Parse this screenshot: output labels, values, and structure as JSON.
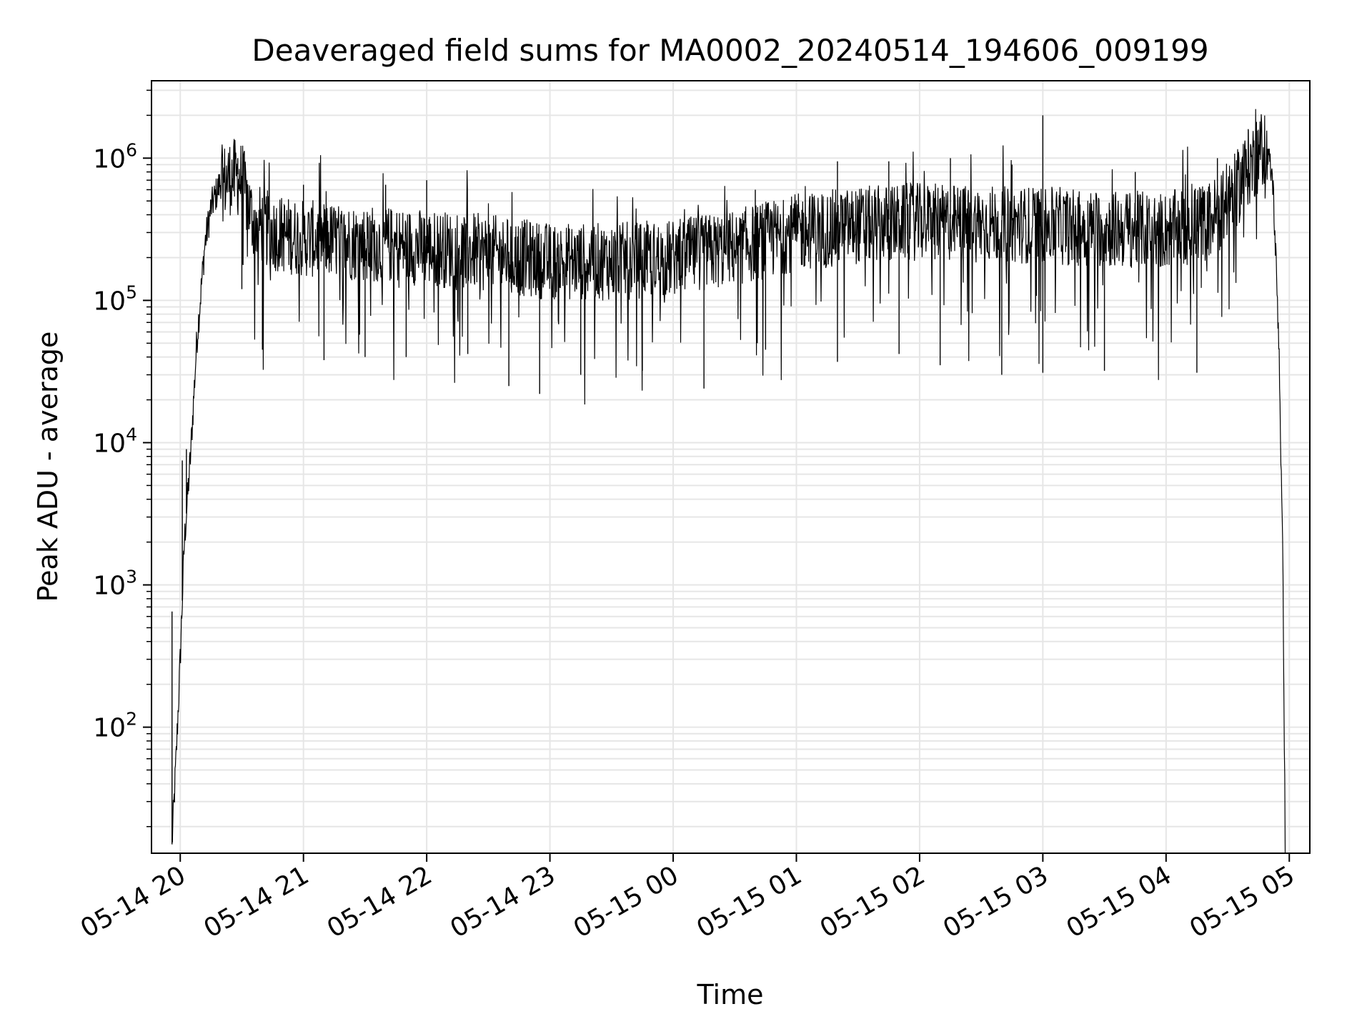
{
  "chart_data": {
    "type": "line",
    "title": "Deaveraged field sums for MA0002_20240514_194606_009199",
    "xlabel": "Time",
    "ylabel": "Peak ADU - average",
    "yscale": "log",
    "grid": true,
    "grid_minor": true,
    "legend": "none",
    "line_color": "#000000",
    "grid_color": "#e6e6e6",
    "xlim": [
      "2024-05-14 19:46",
      "2024-05-15 05:10"
    ],
    "ylim": [
      13,
      3500000
    ],
    "x_ticks": [
      {
        "value": "2024-05-14 20:00",
        "label": "05-14 20"
      },
      {
        "value": "2024-05-14 21:00",
        "label": "05-14 21"
      },
      {
        "value": "2024-05-14 22:00",
        "label": "05-14 22"
      },
      {
        "value": "2024-05-14 23:00",
        "label": "05-14 23"
      },
      {
        "value": "2024-05-15 00:00",
        "label": "05-15 00"
      },
      {
        "value": "2024-05-15 01:00",
        "label": "05-15 01"
      },
      {
        "value": "2024-05-15 02:00",
        "label": "05-15 02"
      },
      {
        "value": "2024-05-15 03:00",
        "label": "05-15 03"
      },
      {
        "value": "2024-05-15 04:00",
        "label": "05-15 04"
      },
      {
        "value": "2024-05-15 05:00",
        "label": "05-15 05"
      }
    ],
    "y_ticks": [
      {
        "value": 100,
        "base": "10",
        "exp": "2"
      },
      {
        "value": 1000,
        "base": "10",
        "exp": "3"
      },
      {
        "value": 10000,
        "base": "10",
        "exp": "4"
      },
      {
        "value": 100000,
        "base": "10",
        "exp": "5"
      },
      {
        "value": 1000000,
        "base": "10",
        "exp": "6"
      }
    ],
    "series": [
      {
        "x": [
          "2024-05-14 19:56",
          "2024-05-14 19:58",
          "2024-05-14 20:00",
          "2024-05-14 20:02",
          "2024-05-14 20:05",
          "2024-05-14 20:08",
          "2024-05-14 20:12",
          "2024-05-14 20:15",
          "2024-05-14 20:20",
          "2024-05-14 20:25",
          "2024-05-14 20:30",
          "2024-05-14 20:35",
          "2024-05-14 20:45",
          "2024-05-14 21:00",
          "2024-05-14 21:30",
          "2024-05-14 22:00",
          "2024-05-14 22:30",
          "2024-05-14 23:00",
          "2024-05-14 23:30",
          "2024-05-15 00:00",
          "2024-05-15 00:30",
          "2024-05-15 01:00",
          "2024-05-15 01:30",
          "2024-05-15 02:00",
          "2024-05-15 02:30",
          "2024-05-15 03:00",
          "2024-05-15 03:30",
          "2024-05-15 04:00",
          "2024-05-15 04:20",
          "2024-05-15 04:30",
          "2024-05-15 04:40",
          "2024-05-15 04:48",
          "2024-05-15 04:52",
          "2024-05-15 04:55",
          "2024-05-15 04:57",
          "2024-05-15 04:58"
        ],
        "y": [
          15,
          60,
          300,
          2000,
          8000,
          50000,
          250000,
          450000,
          700000,
          800000,
          750000,
          400000,
          320000,
          290000,
          270000,
          250000,
          230000,
          200000,
          200000,
          210000,
          250000,
          320000,
          360000,
          380000,
          370000,
          360000,
          340000,
          330000,
          380000,
          500000,
          900000,
          1300000,
          700000,
          50000,
          1000,
          15
        ],
        "spikes_up": [
          {
            "x": "2024-05-14 19:56",
            "y": 650
          },
          {
            "x": "2024-05-14 20:01",
            "y": 7500
          },
          {
            "x": "2024-05-14 20:03",
            "y": 9000
          },
          {
            "x": "2024-05-14 20:28",
            "y": 1000000
          },
          {
            "x": "2024-05-14 21:00",
            "y": 650000
          },
          {
            "x": "2024-05-14 21:40",
            "y": 650000
          },
          {
            "x": "2024-05-14 22:00",
            "y": 700000
          },
          {
            "x": "2024-05-15 00:40",
            "y": 600000
          },
          {
            "x": "2024-05-15 01:20",
            "y": 950000
          },
          {
            "x": "2024-05-15 01:45",
            "y": 950000
          },
          {
            "x": "2024-05-15 02:15",
            "y": 1000000
          },
          {
            "x": "2024-05-15 02:45",
            "y": 900000
          },
          {
            "x": "2024-05-15 03:00",
            "y": 2000000
          },
          {
            "x": "2024-05-15 03:45",
            "y": 800000
          },
          {
            "x": "2024-05-15 04:25",
            "y": 1000000
          },
          {
            "x": "2024-05-15 04:40",
            "y": 1600000
          },
          {
            "x": "2024-05-15 04:44",
            "y": 1800000
          }
        ],
        "spikes_down": [
          {
            "x": "2024-05-14 20:30",
            "y": 120000
          },
          {
            "x": "2024-05-14 20:40",
            "y": 45000
          },
          {
            "x": "2024-05-14 21:10",
            "y": 38000
          },
          {
            "x": "2024-05-14 21:30",
            "y": 40000
          },
          {
            "x": "2024-05-14 21:50",
            "y": 40000
          },
          {
            "x": "2024-05-14 22:20",
            "y": 42000
          },
          {
            "x": "2024-05-14 22:40",
            "y": 25000
          },
          {
            "x": "2024-05-14 22:55",
            "y": 22000
          },
          {
            "x": "2024-05-14 23:15",
            "y": 30000
          },
          {
            "x": "2024-05-14 23:45",
            "y": 32000
          },
          {
            "x": "2024-05-15 00:15",
            "y": 24000
          },
          {
            "x": "2024-05-15 00:45",
            "y": 45000
          },
          {
            "x": "2024-05-15 01:20",
            "y": 37000
          },
          {
            "x": "2024-05-15 01:50",
            "y": 42000
          },
          {
            "x": "2024-05-15 02:10",
            "y": 35000
          },
          {
            "x": "2024-05-15 02:40",
            "y": 30000
          },
          {
            "x": "2024-05-15 03:00",
            "y": 31000
          },
          {
            "x": "2024-05-15 03:30",
            "y": 32000
          },
          {
            "x": "2024-05-15 04:15",
            "y": 31000
          }
        ]
      }
    ]
  }
}
